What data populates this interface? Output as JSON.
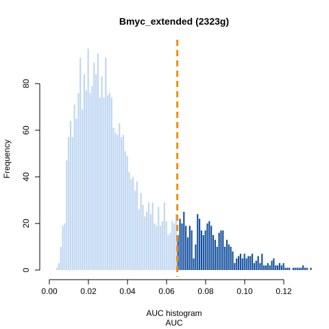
{
  "chart_data": {
    "type": "bar",
    "title": "Bmyc_extended (2323g)",
    "xlabel_line1": "AUC histogram",
    "xlabel_line2": "AUC",
    "ylabel": "Frequency",
    "xlim": [
      0.0,
      0.13
    ],
    "ylim": [
      0,
      95
    ],
    "x_ticks": [
      0.0,
      0.02,
      0.04,
      0.06,
      0.08,
      0.1,
      0.12
    ],
    "x_tick_labels": [
      "0.00",
      "0.02",
      "0.04",
      "0.06",
      "0.08",
      "0.10",
      "0.12"
    ],
    "y_ticks": [
      0,
      20,
      40,
      60,
      80
    ],
    "y_tick_labels": [
      "0",
      "20",
      "40",
      "60",
      "80"
    ],
    "bin_start": 0.0035,
    "bin_width": 0.001,
    "threshold": 0.0655,
    "colors": {
      "below_threshold": "#bed6f2",
      "above_threshold": "#14509e",
      "threshold_line": "#f28c00"
    },
    "values": [
      1,
      3,
      10,
      19,
      20,
      47,
      57,
      64,
      57,
      71,
      65,
      76,
      91,
      69,
      84,
      77,
      95,
      76,
      79,
      89,
      84,
      93,
      74,
      83,
      74,
      91,
      75,
      76,
      74,
      61,
      59,
      58,
      63,
      57,
      58,
      51,
      49,
      42,
      39,
      40,
      34,
      38,
      26,
      33,
      28,
      23,
      25,
      29,
      24,
      29,
      20,
      19,
      27,
      19,
      21,
      29,
      21,
      15,
      16,
      21,
      20,
      24,
      15,
      22,
      20,
      25,
      19,
      14,
      19,
      17,
      5,
      11,
      24,
      22,
      17,
      15,
      17,
      20,
      21,
      19,
      15,
      13,
      10,
      16,
      17,
      17,
      10,
      13,
      11,
      10,
      8,
      3,
      5,
      6,
      7,
      5,
      7,
      5,
      6,
      6,
      7,
      3,
      4,
      6,
      3,
      7,
      2,
      2,
      3,
      2,
      4,
      5,
      2,
      2,
      3,
      2,
      3,
      1,
      1,
      1,
      0,
      1,
      1,
      1,
      1,
      1,
      2,
      1,
      1,
      0,
      1
    ]
  }
}
